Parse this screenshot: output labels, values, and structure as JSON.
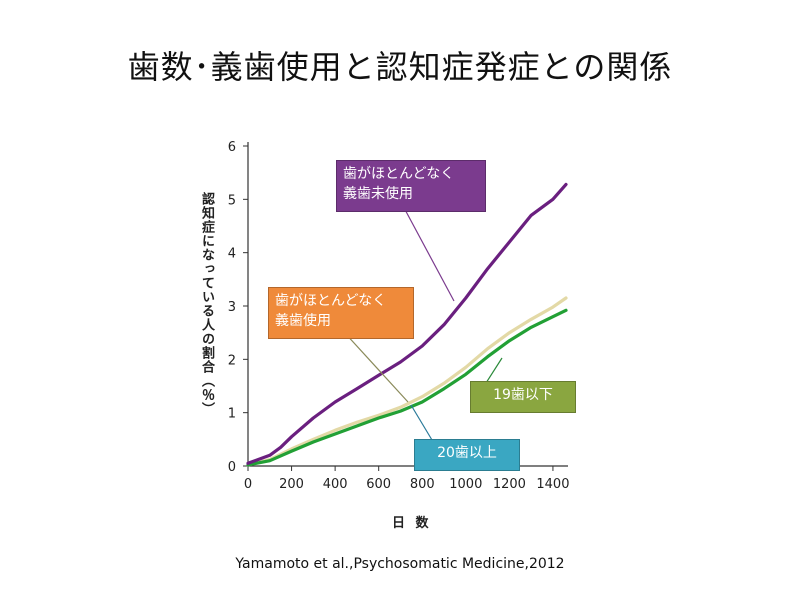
{
  "slide": {
    "title": "歯数･義歯使用と認知症発症との関係",
    "citation": "Yamamoto et al.,Psychosomatic Medicine,2012"
  },
  "chart_data": {
    "type": "line",
    "xlabel": "日 数",
    "ylabel": "認知症になっている人の割合（％）",
    "xlim": [
      0,
      1460
    ],
    "ylim": [
      0,
      6
    ],
    "xticks": [
      0,
      200,
      400,
      600,
      800,
      1000,
      1200,
      1400
    ],
    "yticks": [
      0,
      1,
      2,
      3,
      4,
      5,
      6
    ],
    "grid": false,
    "series": [
      {
        "name": "歯がほとんどなく義歯未使用",
        "color": "#6a1f7f",
        "x": [
          0,
          100,
          150,
          200,
          300,
          400,
          500,
          600,
          700,
          800,
          900,
          1000,
          1100,
          1200,
          1300,
          1400,
          1460
        ],
        "y": [
          0.05,
          0.2,
          0.35,
          0.55,
          0.9,
          1.2,
          1.45,
          1.7,
          1.95,
          2.25,
          2.65,
          3.15,
          3.7,
          4.2,
          4.7,
          5.0,
          5.28
        ]
      },
      {
        "name": "歯がほとんどなく義歯使用",
        "color": "#e3d9a6",
        "x": [
          0,
          100,
          200,
          300,
          400,
          500,
          600,
          700,
          800,
          900,
          1000,
          1100,
          1200,
          1300,
          1400,
          1460
        ],
        "y": [
          0.02,
          0.12,
          0.32,
          0.5,
          0.67,
          0.82,
          0.95,
          1.1,
          1.3,
          1.55,
          1.85,
          2.2,
          2.5,
          2.75,
          2.98,
          3.15
        ]
      },
      {
        "name": "20歯以上",
        "color": "#22a035",
        "x": [
          0,
          100,
          200,
          300,
          400,
          500,
          600,
          700,
          800,
          900,
          1000,
          1100,
          1200,
          1300,
          1400,
          1460
        ],
        "y": [
          0.02,
          0.1,
          0.28,
          0.45,
          0.6,
          0.75,
          0.9,
          1.03,
          1.2,
          1.45,
          1.72,
          2.05,
          2.35,
          2.6,
          2.8,
          2.92
        ]
      }
    ],
    "callouts": {
      "purple_line1": "歯がほとんどなく",
      "purple_line2": "義歯未使用",
      "orange_line1": "歯がほとんどなく",
      "orange_line2": "義歯使用",
      "green": "19歯以下",
      "blue": "20歯以上"
    }
  }
}
